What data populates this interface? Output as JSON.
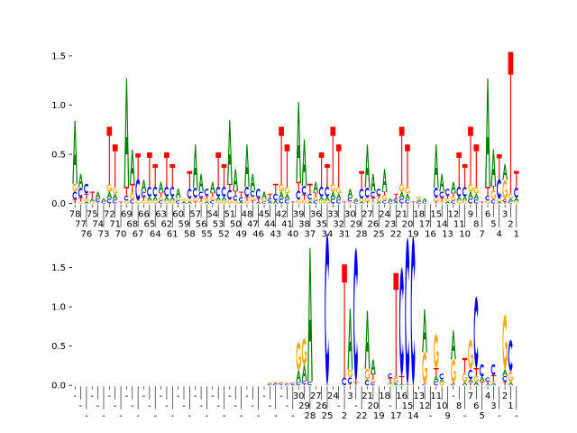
{
  "chart_data": [
    {
      "type": "sequence-logo",
      "panel": "top",
      "ylim": [
        0,
        1.54
      ],
      "yticks": [
        "0.0",
        "0.5",
        "1.0",
        "1.5"
      ],
      "ytick_values": [
        0,
        0.5,
        1.0,
        1.5
      ],
      "xlabels": [
        "78",
        "77",
        "76",
        "75",
        "74",
        "73",
        "72",
        "71",
        "70",
        "69",
        "68",
        "67",
        "66",
        "65",
        "64",
        "63",
        "62",
        "61",
        "60",
        "59",
        "58",
        "57",
        "56",
        "55",
        "54",
        "53",
        "52",
        "51",
        "50",
        "49",
        "48",
        "47",
        "46",
        "45",
        "44",
        "43",
        "42",
        "41",
        "40",
        "39",
        "38",
        "37",
        "36",
        "35",
        "34",
        "33",
        "32",
        "31",
        "30",
        "29",
        "28",
        "27",
        "26",
        "25",
        "24",
        "23",
        "22",
        "21",
        "20",
        "19",
        "18",
        "17",
        "16",
        "15",
        "14",
        "13",
        "12",
        "11",
        "10",
        "9",
        "8",
        "7",
        "6",
        "5",
        "4",
        "3",
        "2",
        "1"
      ],
      "columns": [
        "T.04 C.08 G.08 A.64",
        "G.02 T.04 C.1 A.14",
        "A.02 G.03 T.05 C.1",
        "G.02 A.03 T.07",
        "T.02 C.03 A.07",
        "C.02 A.03",
        "C.05 A.07 G.08 T.58",
        "C.04 A.06 G.07 T.43",
        "T.02",
        "G.03 C.05 T.09 A1.1",
        "C.04 G.07 T.09 A.35",
        "G.03 C.22 T.26",
        "G.03 T.04 C.05 A.12",
        "G.03 A.04 C.1 T.35",
        "G.03 A.04 C.1 T.23",
        "C.03 G.04 T.04 A.11",
        "G.03 A.04 C.1 T.35",
        "G.03 A.04 C.1 T.23",
        "C.03 G.03 A.09",
        "A.02 G.03",
        "A.02 G.03 C.1 T.18",
        "T.02 G.04 C.1 A.44",
        "G.02 T.04 C.06 A.18",
        "A.02 G.03 T.03 C.07",
        "C.03 G.04 T.04 A.11",
        "G.03 A.04 C.1 T.35",
        "G.03 A.04 C.1 T.23",
        "G.04 C.1 T.06 A.65",
        "G.03 C.05 T.05 A.22",
        "A.02 C.04 T.06",
        "G.03 T.04 C.1 A.43",
        "T.03 G.04 C.06 A.17",
        "A.02 T.03 C.1",
        "C.02 G.03 A.07",
        "A.02 C.03 T.05",
        "A.03 C.07 T.1",
        "C.05 A.07 G.08 T.58",
        "C.04 A.06 G.07 T.43",
        "T.02",
        "G.04 C.09 T.09 A.81",
        "G.04 T.05 C.09 A.47",
        "A.02 G.02 C.06 T.1",
        "C.03 G.04 T.04 A.11",
        "G.03 A.04 C.1 T.35",
        "G.03 A.04 C.1 T.23",
        "C.05 A.07 G.08 T.58",
        "C.04 A.06 G.07 T.43",
        "T.02",
        "G.02 C.04 A.09",
        "C.02 A.03",
        "A.02 G.03 C.1 T.18",
        "T.02 G.04 C.1 A.44",
        "G.02 T.04 C.06 A.18",
        "A.02 G.03 T.03 C.07",
        "C.03 G.06 T.03 A.23",
        "C.02 A.03",
        "A.02 C.03 T.05",
        "C.05 A.07 G.08 T.58",
        "C.04 A.06 G.07 T.43",
        "T.02",
        "C.02 A.02 G.03",
        "C.02 A.03",
        "",
        "T.02 G.04 C.1 A.44",
        "G.02 T.04 C.06 A.18",
        "A.02 G.03 T.03 C.07",
        "C.03 G.04 T.04 A.11",
        "G.03 A.04 C.1 T.35",
        "G.03 A.04 C.1 T.23",
        "C.05 A.07 G.08 T.58",
        "C.04 A.06 G.07 T.43",
        "T.02",
        "G.03 C.05 T.09 A1.1",
        "C.04 G.1 T.04 A.37",
        "A.02 G.03 C.2 T.25",
        "T.02 C.02 G.2 A.16",
        "C.02 A.03 G.05 T1.44",
        "G.02 A.04 C.1 T.17"
      ]
    },
    {
      "type": "sequence-logo",
      "panel": "bottom",
      "ylim": [
        0,
        1.93
      ],
      "yticks": [
        "0.0",
        "0.5",
        "1.0",
        "1.5"
      ],
      "ytick_values": [
        0,
        0.5,
        1.0,
        1.5
      ],
      "xlabels": [
        "-",
        "-",
        "-",
        "-",
        "-",
        "-",
        "-",
        "-",
        "-",
        "-",
        "-",
        "-",
        "-",
        "-",
        "-",
        "-",
        "-",
        "-",
        "-",
        "-",
        "-",
        "-",
        "-",
        "-",
        "-",
        "-",
        "-",
        "-",
        "-",
        "-",
        "-",
        "-",
        "-",
        "-",
        "-",
        "-",
        "-",
        "-",
        "-",
        "30",
        "29",
        "28",
        "27",
        "26",
        "25",
        "24",
        "-",
        "2",
        "3",
        "-",
        "22",
        "21",
        "20",
        "19",
        "18",
        "-",
        "17",
        "16",
        "15",
        "14",
        "13",
        "12",
        "-",
        "11",
        "10",
        "9",
        "-",
        "8",
        "-",
        "7",
        "6",
        "5",
        "4",
        "3",
        "-",
        "2",
        "1",
        "-"
      ],
      "columns": [
        "",
        "",
        "",
        "",
        "",
        "",
        "",
        "",
        "",
        "",
        "",
        "",
        "",
        "",
        "",
        "",
        "",
        "",
        "",
        "",
        "",
        "",
        "",
        "",
        "",
        "",
        "",
        "",
        "",
        "",
        "",
        "",
        "",
        "",
        "C.02 G.02",
        "C.02 A.01 G.02",
        "T.01 C.02 G.02",
        "C.02 G.02",
        "A.01 C.02 G.01",
        "C.04 A.15 G.36",
        "T.02 C.04 A.2 G.34",
        "C.05 A1.7",
        "",
        "",
        "T.01 C1.92",
        "",
        "",
        "C.1 T1.44",
        "T.02 C.08 G.1 A.78",
        "T.05 C1.7",
        "",
        "C.07 G.14 A.74",
        "C.04 G.04 T.07 A.18",
        "",
        "",
        "G.02 A.02 T.05 C.06",
        "A.02 C.02 G.06 T1.33",
        "A.02 T.1 C1.38",
        "T.01 A.01 C1.86",
        "T.01 C1.89",
        "",
        "C.02 G.4 A.55",
        "",
        "C.05 A.07 T.1 G.43",
        "G.04 A.04 C.07",
        "",
        "C.02 T.01 G.3 A.37",
        "",
        "A.04 G.13 T.18",
        "T.04 A.04 C.12 G.38",
        "A.05 G.07 T.1 C.91",
        "T.05 A.06 C.16",
        "A.02 T.03 C.05",
        "A.03 G.02 T.08 C.14",
        "",
        "T.05 C.07 A.08 G.7",
        "A.04 G.14 C.4",
        ""
      ]
    }
  ],
  "colors": {
    "A": "#008000",
    "C": "#0000ff",
    "G": "#ffa500",
    "T": "#ff0000"
  }
}
